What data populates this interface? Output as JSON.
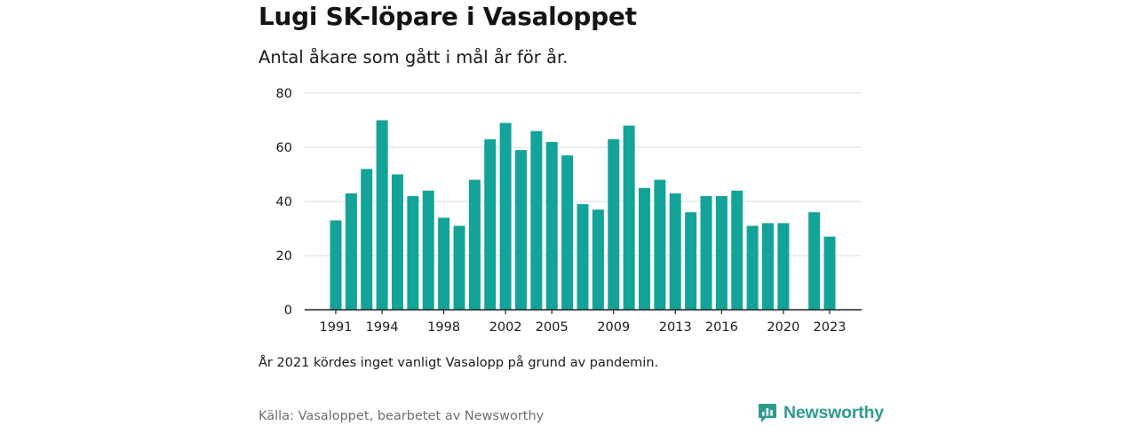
{
  "title": "Lugi SK-löpare i Vasaloppet",
  "subtitle": "Antal åkare som gått i mål år för år.",
  "note": "År 2021 kördes inget vanligt Vasalopp på grund av pandemin.",
  "source": "Källa: Vasaloppet, bearbetet av Newsworthy",
  "brand": {
    "name": "Newsworthy",
    "icon": "newsworthy-logo-icon",
    "color": "#2e9b8f"
  },
  "chart_data": {
    "type": "bar",
    "title": "Lugi SK-löpare i Vasaloppet",
    "subtitle": "Antal åkare som gått i mål år för år.",
    "categories": [
      1991,
      1992,
      1993,
      1994,
      1995,
      1996,
      1997,
      1998,
      1999,
      2000,
      2001,
      2002,
      2003,
      2004,
      2005,
      2006,
      2007,
      2008,
      2009,
      2010,
      2011,
      2012,
      2013,
      2014,
      2015,
      2016,
      2017,
      2018,
      2019,
      2020,
      2021,
      2022,
      2023
    ],
    "values": [
      33,
      43,
      52,
      70,
      50,
      42,
      44,
      34,
      31,
      48,
      63,
      69,
      59,
      66,
      62,
      57,
      39,
      37,
      63,
      68,
      45,
      48,
      43,
      36,
      42,
      42,
      44,
      31,
      32,
      32,
      null,
      36,
      27
    ],
    "x_tick_labels": [
      "1991",
      "1994",
      "1998",
      "2002",
      "2005",
      "2009",
      "2013",
      "2016",
      "2020",
      "2023"
    ],
    "y_tick_labels": [
      "0",
      "20",
      "40",
      "60",
      "80"
    ],
    "ylim": [
      0,
      80
    ],
    "grid": true,
    "bar_color": "#13a398",
    "grid_color": "#dcdcdc",
    "axis_color": "#222222"
  }
}
